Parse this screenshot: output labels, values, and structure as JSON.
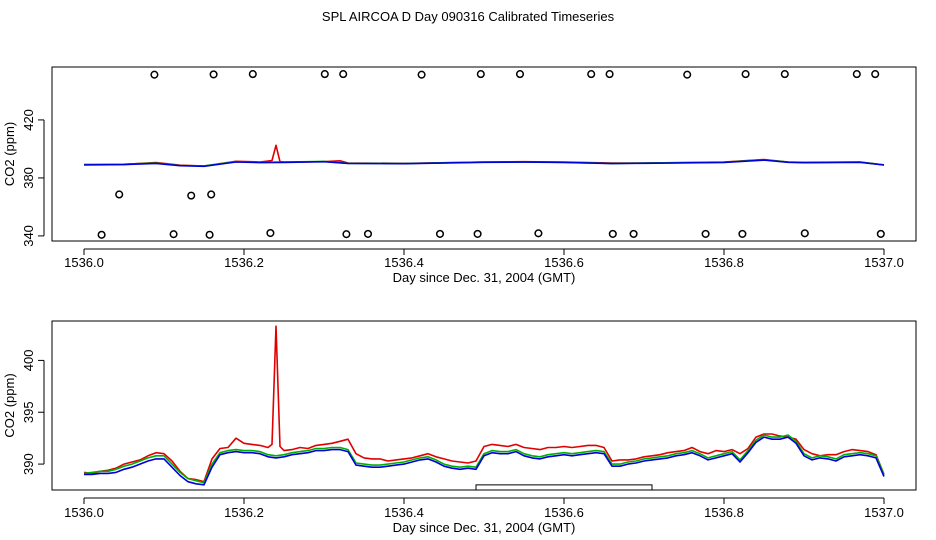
{
  "title": "SPL AIRCOA D  Day 090316  Calibrated Timeseries",
  "colors": {
    "red": "#e00000",
    "green": "#00b000",
    "blue": "#0000dd",
    "black": "#000000"
  },
  "chart_data": [
    {
      "type": "line",
      "name": "overview",
      "xlabel": "Day since Dec. 31, 2004 (GMT)",
      "ylabel": "CO2 (ppm)",
      "xlim": [
        1536.0,
        1537.0
      ],
      "ylim": [
        336.5,
        456.5
      ],
      "xticks": [
        1536.0,
        1536.2,
        1536.4,
        1536.6,
        1536.8,
        1537.0
      ],
      "xtick_labels": [
        "1536.0",
        "1536.2",
        "1536.4",
        "1536.6",
        "1536.8",
        "1537.0"
      ],
      "yticks": [
        340,
        380,
        420
      ],
      "ytick_labels": [
        "340",
        "380",
        "420"
      ],
      "series": [
        {
          "name": "red",
          "color": "#e00000",
          "x": [
            1536.0,
            1536.05,
            1536.09,
            1536.12,
            1536.15,
            1536.19,
            1536.22,
            1536.235,
            1536.24,
            1536.245,
            1536.25,
            1536.3,
            1536.32,
            1536.33,
            1536.4,
            1536.5,
            1536.55,
            1536.6,
            1536.66,
            1536.7,
            1536.8,
            1536.85,
            1536.88,
            1536.9,
            1536.97,
            1537.0
          ],
          "y": [
            389.2,
            389.3,
            390.6,
            388.8,
            388.2,
            391.5,
            391.0,
            392.0,
            402.5,
            391.2,
            391.0,
            391.2,
            391.8,
            390.3,
            390.0,
            391.0,
            391.2,
            391.0,
            390.2,
            390.3,
            391.0,
            392.7,
            391.0,
            390.8,
            391.0,
            389.0
          ]
        },
        {
          "name": "green",
          "color": "#00b000",
          "x": [
            1536.0,
            1536.05,
            1536.09,
            1536.12,
            1536.15,
            1536.19,
            1536.22,
            1536.25,
            1536.3,
            1536.33,
            1536.4,
            1536.5,
            1536.55,
            1536.6,
            1536.66,
            1536.7,
            1536.8,
            1536.85,
            1536.88,
            1536.9,
            1536.97,
            1537.0
          ],
          "y": [
            389.2,
            389.5,
            390.2,
            388.6,
            388.3,
            391.2,
            390.8,
            390.9,
            391.4,
            390.1,
            389.9,
            390.9,
            391.0,
            390.8,
            390.0,
            390.2,
            390.8,
            392.5,
            390.9,
            390.6,
            390.9,
            389.0
          ]
        },
        {
          "name": "blue",
          "color": "#0000dd",
          "x": [
            1536.0,
            1536.05,
            1536.09,
            1536.12,
            1536.15,
            1536.19,
            1536.22,
            1536.25,
            1536.3,
            1536.33,
            1536.4,
            1536.5,
            1536.55,
            1536.6,
            1536.66,
            1536.7,
            1536.8,
            1536.85,
            1536.88,
            1536.9,
            1536.97,
            1537.0
          ],
          "y": [
            389.0,
            389.2,
            390.0,
            388.4,
            388.0,
            391.0,
            390.6,
            390.7,
            391.2,
            390.0,
            389.8,
            390.8,
            390.9,
            390.7,
            389.9,
            390.1,
            390.7,
            392.3,
            390.8,
            390.5,
            390.8,
            388.9
          ]
        }
      ],
      "markers": [
        {
          "x": 1536.022,
          "y": 340.8
        },
        {
          "x": 1536.044,
          "y": 368.6
        },
        {
          "x": 1536.088,
          "y": 451.2
        },
        {
          "x": 1536.112,
          "y": 341.2
        },
        {
          "x": 1536.134,
          "y": 367.8
        },
        {
          "x": 1536.157,
          "y": 340.8
        },
        {
          "x": 1536.159,
          "y": 368.6
        },
        {
          "x": 1536.162,
          "y": 451.4
        },
        {
          "x": 1536.211,
          "y": 451.6
        },
        {
          "x": 1536.233,
          "y": 342.0
        },
        {
          "x": 1536.301,
          "y": 451.6
        },
        {
          "x": 1536.324,
          "y": 451.6
        },
        {
          "x": 1536.328,
          "y": 341.2
        },
        {
          "x": 1536.355,
          "y": 341.4
        },
        {
          "x": 1536.422,
          "y": 451.2
        },
        {
          "x": 1536.445,
          "y": 341.4
        },
        {
          "x": 1536.492,
          "y": 341.4
        },
        {
          "x": 1536.496,
          "y": 451.6
        },
        {
          "x": 1536.545,
          "y": 451.6
        },
        {
          "x": 1536.568,
          "y": 341.8
        },
        {
          "x": 1536.634,
          "y": 451.6
        },
        {
          "x": 1536.657,
          "y": 451.6
        },
        {
          "x": 1536.661,
          "y": 341.4
        },
        {
          "x": 1536.687,
          "y": 341.4
        },
        {
          "x": 1536.754,
          "y": 451.2
        },
        {
          "x": 1536.777,
          "y": 341.4
        },
        {
          "x": 1536.823,
          "y": 341.4
        },
        {
          "x": 1536.827,
          "y": 451.6
        },
        {
          "x": 1536.876,
          "y": 451.6
        },
        {
          "x": 1536.901,
          "y": 341.8
        },
        {
          "x": 1536.966,
          "y": 451.6
        },
        {
          "x": 1536.989,
          "y": 451.6
        },
        {
          "x": 1536.996,
          "y": 341.4
        }
      ]
    },
    {
      "type": "line",
      "name": "detail",
      "xlabel": "Day since Dec. 31, 2004 (GMT)",
      "ylabel": "CO2 (ppm)",
      "xlim": [
        1536.0,
        1537.0
      ],
      "ylim": [
        387.5,
        403.8
      ],
      "xticks": [
        1536.0,
        1536.2,
        1536.4,
        1536.6,
        1536.8,
        1537.0
      ],
      "xtick_labels": [
        "1536.0",
        "1536.2",
        "1536.4",
        "1536.6",
        "1536.8",
        "1537.0"
      ],
      "yticks": [
        390,
        395,
        400
      ],
      "ytick_labels": [
        "390",
        "395",
        "400"
      ],
      "series": [
        {
          "name": "red",
          "color": "#e00000",
          "x": [
            1536.0,
            1536.01,
            1536.02,
            1536.03,
            1536.04,
            1536.05,
            1536.06,
            1536.07,
            1536.08,
            1536.09,
            1536.1,
            1536.11,
            1536.12,
            1536.13,
            1536.14,
            1536.15,
            1536.16,
            1536.17,
            1536.18,
            1536.19,
            1536.2,
            1536.21,
            1536.22,
            1536.23,
            1536.235,
            1536.24,
            1536.245,
            1536.25,
            1536.26,
            1536.27,
            1536.28,
            1536.29,
            1536.3,
            1536.31,
            1536.32,
            1536.33,
            1536.34,
            1536.35,
            1536.36,
            1536.37,
            1536.38,
            1536.39,
            1536.4,
            1536.41,
            1536.42,
            1536.43,
            1536.44,
            1536.45,
            1536.46,
            1536.47,
            1536.48,
            1536.49,
            1536.5,
            1536.51,
            1536.52,
            1536.53,
            1536.54,
            1536.55,
            1536.56,
            1536.57,
            1536.58,
            1536.59,
            1536.6,
            1536.61,
            1536.62,
            1536.63,
            1536.64,
            1536.65,
            1536.66,
            1536.67,
            1536.68,
            1536.69,
            1536.7,
            1536.71,
            1536.72,
            1536.73,
            1536.74,
            1536.75,
            1536.76,
            1536.77,
            1536.78,
            1536.79,
            1536.8,
            1536.81,
            1536.82,
            1536.83,
            1536.84,
            1536.85,
            1536.86,
            1536.87,
            1536.88,
            1536.89,
            1536.9,
            1536.91,
            1536.92,
            1536.93,
            1536.94,
            1536.95,
            1536.96,
            1536.97,
            1536.98,
            1536.99,
            1537.0
          ],
          "y": [
            389.2,
            389.1,
            389.3,
            389.4,
            389.6,
            390.0,
            390.2,
            390.4,
            390.8,
            391.1,
            391.0,
            390.3,
            389.3,
            388.6,
            388.5,
            388.3,
            390.5,
            391.5,
            391.6,
            392.5,
            392.0,
            391.9,
            391.8,
            391.6,
            391.9,
            403.3,
            391.7,
            391.3,
            391.4,
            391.6,
            391.5,
            391.8,
            391.9,
            392.0,
            392.2,
            392.4,
            391.0,
            390.6,
            390.5,
            390.5,
            390.3,
            390.4,
            390.5,
            390.6,
            390.8,
            391.0,
            390.7,
            390.5,
            390.3,
            390.2,
            390.1,
            390.3,
            391.7,
            391.9,
            391.8,
            391.7,
            391.9,
            391.6,
            391.5,
            391.4,
            391.6,
            391.6,
            391.7,
            391.6,
            391.7,
            391.8,
            391.8,
            391.6,
            390.3,
            390.4,
            390.4,
            390.5,
            390.7,
            390.8,
            390.9,
            391.1,
            391.2,
            391.3,
            391.6,
            391.2,
            391.0,
            391.3,
            391.2,
            391.4,
            391.0,
            391.5,
            392.6,
            392.9,
            392.9,
            392.7,
            392.6,
            392.4,
            391.4,
            391.0,
            390.8,
            390.9,
            390.9,
            391.2,
            391.4,
            391.3,
            391.2,
            390.9,
            389.0
          ]
        },
        {
          "name": "green",
          "color": "#00b000",
          "x": [
            1536.0,
            1536.01,
            1536.02,
            1536.03,
            1536.04,
            1536.05,
            1536.06,
            1536.07,
            1536.08,
            1536.09,
            1536.1,
            1536.11,
            1536.12,
            1536.13,
            1536.14,
            1536.15,
            1536.16,
            1536.17,
            1536.18,
            1536.19,
            1536.2,
            1536.21,
            1536.22,
            1536.23,
            1536.24,
            1536.25,
            1536.26,
            1536.27,
            1536.28,
            1536.29,
            1536.3,
            1536.31,
            1536.32,
            1536.33,
            1536.34,
            1536.35,
            1536.36,
            1536.37,
            1536.38,
            1536.39,
            1536.4,
            1536.41,
            1536.42,
            1536.43,
            1536.44,
            1536.45,
            1536.46,
            1536.47,
            1536.48,
            1536.49,
            1536.5,
            1536.51,
            1536.52,
            1536.53,
            1536.54,
            1536.55,
            1536.56,
            1536.57,
            1536.58,
            1536.59,
            1536.6,
            1536.61,
            1536.62,
            1536.63,
            1536.64,
            1536.65,
            1536.66,
            1536.67,
            1536.68,
            1536.69,
            1536.7,
            1536.71,
            1536.72,
            1536.73,
            1536.74,
            1536.75,
            1536.76,
            1536.77,
            1536.78,
            1536.79,
            1536.8,
            1536.81,
            1536.82,
            1536.83,
            1536.84,
            1536.85,
            1536.86,
            1536.87,
            1536.88,
            1536.89,
            1536.9,
            1536.91,
            1536.92,
            1536.93,
            1536.94,
            1536.95,
            1536.96,
            1536.97,
            1536.98,
            1536.99,
            1537.0
          ],
          "y": [
            389.1,
            389.2,
            389.3,
            389.3,
            389.5,
            389.8,
            390.0,
            390.3,
            390.6,
            390.8,
            390.8,
            390.0,
            389.2,
            388.6,
            388.4,
            388.2,
            390.0,
            391.1,
            391.3,
            391.4,
            391.3,
            391.3,
            391.2,
            390.9,
            390.8,
            390.9,
            391.1,
            391.2,
            391.3,
            391.5,
            391.5,
            391.6,
            391.6,
            391.4,
            390.1,
            390.0,
            389.9,
            389.9,
            390.0,
            390.1,
            390.2,
            390.4,
            390.6,
            390.7,
            390.4,
            390.0,
            389.8,
            389.7,
            389.8,
            389.7,
            391.0,
            391.3,
            391.2,
            391.2,
            391.4,
            391.0,
            390.8,
            390.7,
            390.9,
            391.0,
            391.1,
            391.0,
            391.1,
            391.2,
            391.3,
            391.2,
            390.0,
            390.0,
            390.2,
            390.3,
            390.5,
            390.6,
            390.7,
            390.8,
            391.0,
            391.1,
            391.3,
            391.0,
            390.6,
            390.8,
            391.0,
            391.2,
            390.4,
            391.3,
            392.3,
            392.8,
            392.6,
            392.6,
            392.8,
            392.2,
            391.0,
            390.6,
            390.8,
            390.7,
            390.5,
            390.9,
            391.0,
            391.1,
            391.0,
            390.8,
            389.0
          ]
        },
        {
          "name": "blue",
          "color": "#0000dd",
          "x": [
            1536.0,
            1536.01,
            1536.02,
            1536.03,
            1536.04,
            1536.05,
            1536.06,
            1536.07,
            1536.08,
            1536.09,
            1536.1,
            1536.11,
            1536.12,
            1536.13,
            1536.14,
            1536.15,
            1536.16,
            1536.17,
            1536.18,
            1536.19,
            1536.2,
            1536.21,
            1536.22,
            1536.23,
            1536.24,
            1536.25,
            1536.26,
            1536.27,
            1536.28,
            1536.29,
            1536.3,
            1536.31,
            1536.32,
            1536.33,
            1536.34,
            1536.35,
            1536.36,
            1536.37,
            1536.38,
            1536.39,
            1536.4,
            1536.41,
            1536.42,
            1536.43,
            1536.44,
            1536.45,
            1536.46,
            1536.47,
            1536.48,
            1536.49,
            1536.5,
            1536.51,
            1536.52,
            1536.53,
            1536.54,
            1536.55,
            1536.56,
            1536.57,
            1536.58,
            1536.59,
            1536.6,
            1536.61,
            1536.62,
            1536.63,
            1536.64,
            1536.65,
            1536.66,
            1536.67,
            1536.68,
            1536.69,
            1536.7,
            1536.71,
            1536.72,
            1536.73,
            1536.74,
            1536.75,
            1536.76,
            1536.77,
            1536.78,
            1536.79,
            1536.8,
            1536.81,
            1536.82,
            1536.83,
            1536.84,
            1536.85,
            1536.86,
            1536.87,
            1536.88,
            1536.89,
            1536.9,
            1536.91,
            1536.92,
            1536.93,
            1536.94,
            1536.95,
            1536.96,
            1536.97,
            1536.98,
            1536.99,
            1537.0
          ],
          "y": [
            389.0,
            389.0,
            389.1,
            389.1,
            389.2,
            389.5,
            389.7,
            390.0,
            390.3,
            390.5,
            390.5,
            389.7,
            388.9,
            388.3,
            388.1,
            388.0,
            389.7,
            390.9,
            391.1,
            391.2,
            391.1,
            391.1,
            391.0,
            390.7,
            390.6,
            390.7,
            390.9,
            391.0,
            391.1,
            391.3,
            391.3,
            391.4,
            391.4,
            391.2,
            389.9,
            389.8,
            389.7,
            389.7,
            389.8,
            389.9,
            390.0,
            390.2,
            390.4,
            390.5,
            390.2,
            389.8,
            389.6,
            389.5,
            389.6,
            389.5,
            390.8,
            391.1,
            391.0,
            391.0,
            391.2,
            390.8,
            390.6,
            390.5,
            390.7,
            390.8,
            390.9,
            390.8,
            390.9,
            391.0,
            391.1,
            391.0,
            389.8,
            389.8,
            390.0,
            390.1,
            390.3,
            390.4,
            390.5,
            390.6,
            390.8,
            390.9,
            391.1,
            390.8,
            390.4,
            390.6,
            390.8,
            391.0,
            390.2,
            391.1,
            392.1,
            392.6,
            392.4,
            392.4,
            392.6,
            392.0,
            390.8,
            390.4,
            390.6,
            390.5,
            390.3,
            390.7,
            390.8,
            390.9,
            390.8,
            390.6,
            388.8
          ]
        }
      ],
      "bracket": {
        "x0": 1536.49,
        "x1": 1536.71,
        "y": 388.0
      }
    }
  ]
}
